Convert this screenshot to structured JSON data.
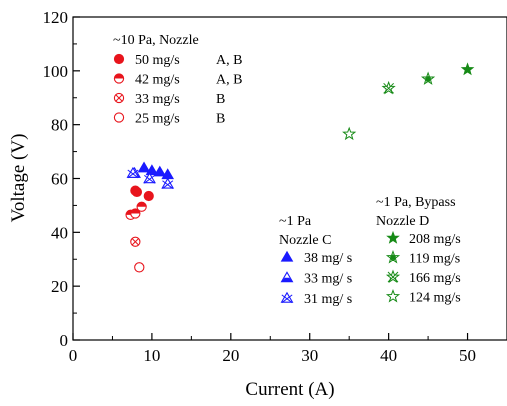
{
  "chart_data": {
    "type": "scatter",
    "xlabel": "Current (A)",
    "ylabel": "Voltage (V)",
    "xlim": [
      0,
      55
    ],
    "ylim": [
      0,
      120
    ],
    "x_ticks": [
      "0",
      "10",
      "20",
      "30",
      "40",
      "50"
    ],
    "y_ticks": [
      "0",
      "20",
      "40",
      "60",
      "80",
      "100",
      "120"
    ],
    "grid": false,
    "colors": {
      "red": "#e8141c",
      "blue": "#1a1aff",
      "green": "#168a16"
    },
    "groups": [
      {
        "title_lines": [
          "~10 Pa,     Nozzle"
        ],
        "legend_position": "top-left",
        "series": [
          {
            "name": "50 mg/s",
            "nozzle": "A, B",
            "marker": "circle-filled",
            "color": "#e8141c",
            "points": [
              [
                7.9,
                55.5
              ],
              [
                8.1,
                55.0
              ],
              [
                9.6,
                53.5
              ]
            ]
          },
          {
            "name": "42 mg/s",
            "nozzle": "A, B",
            "marker": "circle-half",
            "color": "#e8141c",
            "points": [
              [
                7.3,
                46.5
              ],
              [
                7.9,
                47.0
              ],
              [
                8.7,
                49.5
              ]
            ]
          },
          {
            "name": "33 mg/s",
            "nozzle": "B",
            "marker": "circle-cross",
            "color": "#e8141c",
            "points": [
              [
                7.9,
                36.5
              ]
            ]
          },
          {
            "name": "25 mg/s",
            "nozzle": "B",
            "marker": "circle-open",
            "color": "#e8141c",
            "points": [
              [
                8.4,
                27.0
              ]
            ]
          }
        ]
      },
      {
        "title_lines": [
          "~1 Pa",
          "Nozzle  C"
        ],
        "legend_position": "lower-middle",
        "series": [
          {
            "name": "38 mg/ s",
            "marker": "triangle-filled",
            "color": "#1a1aff",
            "points": [
              [
                9.0,
                64.0
              ],
              [
                10.0,
                63.0
              ],
              [
                11.0,
                62.5
              ],
              [
                12.0,
                61.5
              ]
            ]
          },
          {
            "name": "33 mg/ s",
            "marker": "triangle-half",
            "color": "#1a1aff",
            "points": [
              [
                7.8,
                62.0
              ]
            ]
          },
          {
            "name": "31 mg/ s",
            "marker": "triangle-cross",
            "color": "#1a1aff",
            "points": [
              [
                7.6,
                62.0
              ],
              [
                9.7,
                60.0
              ],
              [
                12.0,
                58.0
              ]
            ]
          }
        ]
      },
      {
        "title_lines": [
          "~1 Pa, Bypass",
          "Nozzle  D"
        ],
        "legend_position": "lower-right",
        "series": [
          {
            "name": "208 mg/s",
            "marker": "star-filled",
            "color": "#168a16",
            "points": [
              [
                50.0,
                100.5
              ]
            ]
          },
          {
            "name": "119 mg/s",
            "marker": "star-half",
            "color": "#168a16",
            "points": [
              [
                45.0,
                97.0
              ]
            ]
          },
          {
            "name": "166 mg/s",
            "marker": "star-cross",
            "color": "#168a16",
            "points": [
              [
                40.0,
                93.5
              ]
            ]
          },
          {
            "name": "124 mg/s",
            "marker": "star-open",
            "color": "#168a16",
            "points": [
              [
                35.0,
                76.5
              ]
            ]
          }
        ]
      }
    ]
  }
}
